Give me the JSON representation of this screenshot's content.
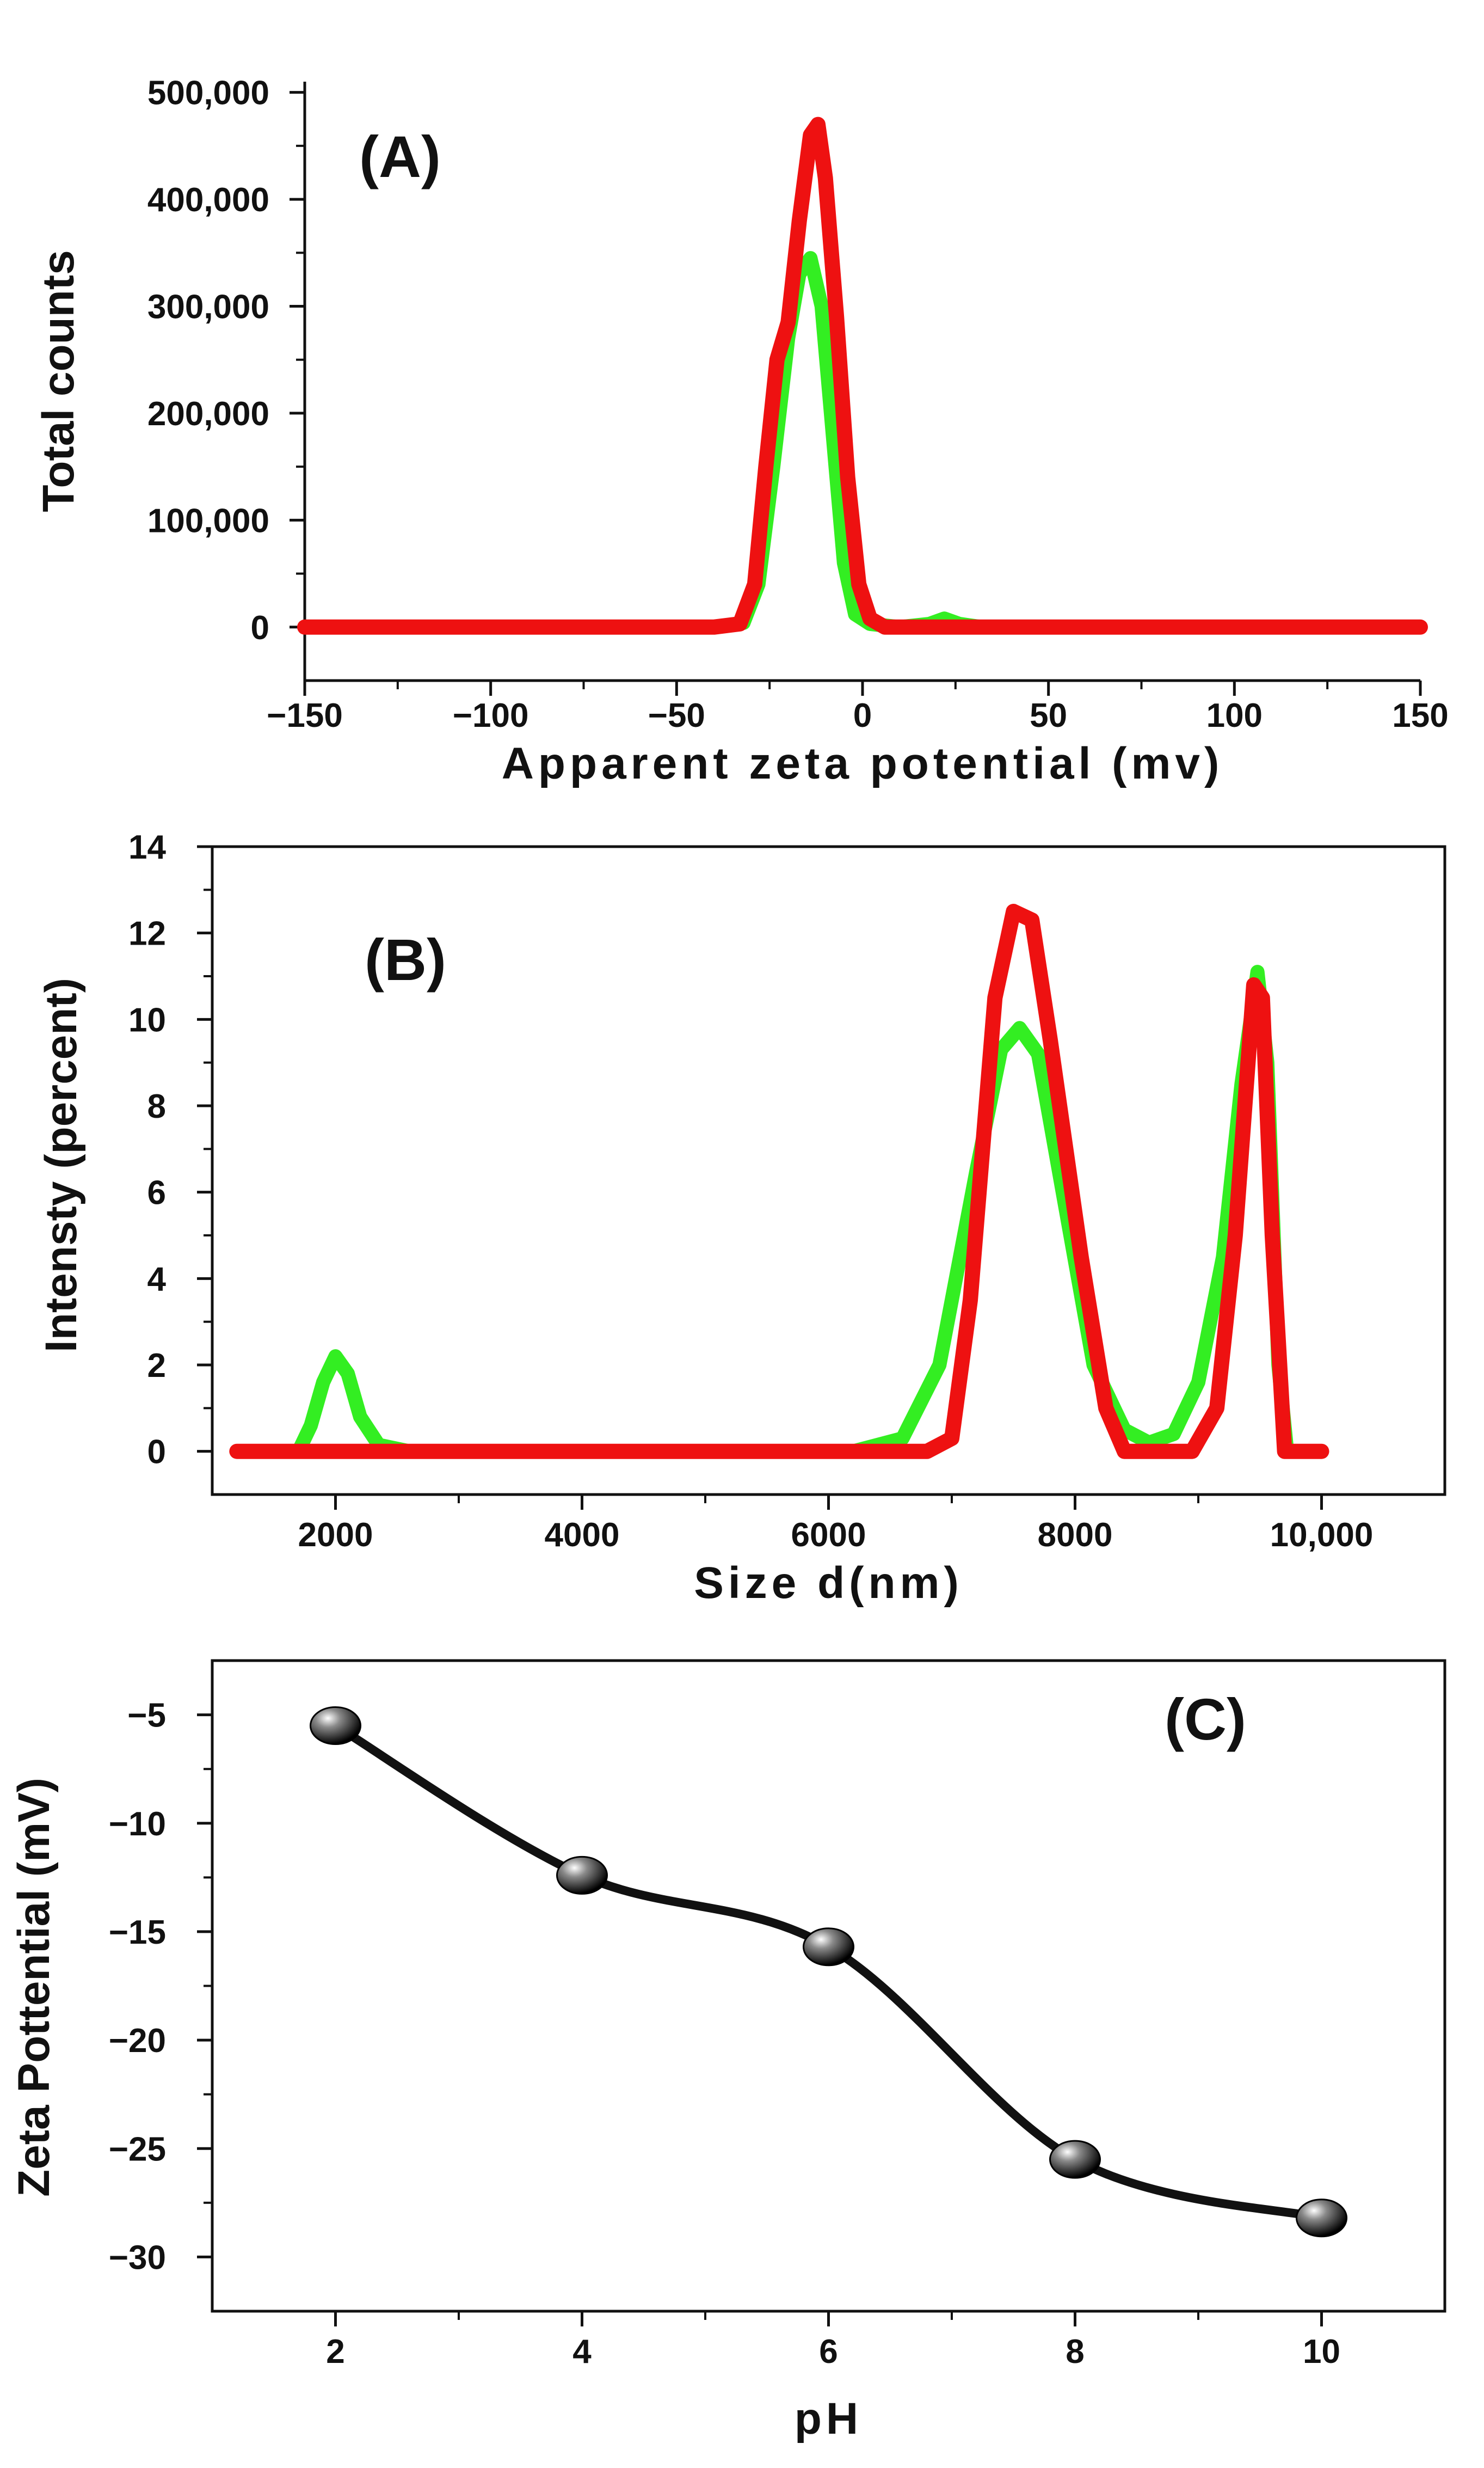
{
  "colors": {
    "green": "#33ee22",
    "red": "#ee1111",
    "black": "#111111"
  },
  "chart_data": [
    {
      "id": "A",
      "type": "line",
      "panel_label": "(A)",
      "xlabel": "Apparent zeta potential (mv)",
      "ylabel": "Total counts",
      "xlim": [
        -150,
        150
      ],
      "ylim": [
        -50000,
        510000
      ],
      "xticks": [
        -150,
        -100,
        -50,
        0,
        50,
        100,
        150
      ],
      "xtick_labels": [
        "−150",
        "−100",
        "−50",
        "0",
        "50",
        "100",
        "150"
      ],
      "yticks": [
        0,
        100000,
        200000,
        300000,
        400000,
        500000
      ],
      "ytick_labels": [
        "0",
        "100,000",
        "200,000",
        "300,000",
        "400,000",
        "500,000"
      ],
      "series": [
        {
          "name": "green",
          "color": "#33ee22",
          "points": [
            [
              -150,
              0
            ],
            [
              -40,
              0
            ],
            [
              -32,
              4000
            ],
            [
              -28,
              40000
            ],
            [
              -24,
              150000
            ],
            [
              -20,
              270000
            ],
            [
              -17,
              330000
            ],
            [
              -14,
              345000
            ],
            [
              -11,
              300000
            ],
            [
              -8,
              180000
            ],
            [
              -5,
              60000
            ],
            [
              -2,
              12000
            ],
            [
              2,
              3000
            ],
            [
              10,
              0
            ],
            [
              18,
              3000
            ],
            [
              22,
              8000
            ],
            [
              26,
              3000
            ],
            [
              32,
              0
            ],
            [
              150,
              0
            ]
          ]
        },
        {
          "name": "red",
          "color": "#ee1111",
          "points": [
            [
              -150,
              0
            ],
            [
              -40,
              0
            ],
            [
              -33,
              3000
            ],
            [
              -29,
              40000
            ],
            [
              -26,
              150000
            ],
            [
              -23,
              250000
            ],
            [
              -20,
              285000
            ],
            [
              -17,
              380000
            ],
            [
              -14,
              460000
            ],
            [
              -12,
              470000
            ],
            [
              -10,
              420000
            ],
            [
              -7,
              290000
            ],
            [
              -4,
              140000
            ],
            [
              -1,
              40000
            ],
            [
              2,
              8000
            ],
            [
              6,
              0
            ],
            [
              150,
              0
            ]
          ]
        }
      ]
    },
    {
      "id": "B",
      "type": "line",
      "panel_label": "(B)",
      "xlabel": "Size d(nm)",
      "ylabel": "Intensty (percent)",
      "xlim": [
        1000,
        11000
      ],
      "ylim": [
        -1,
        14
      ],
      "xticks": [
        2000,
        4000,
        6000,
        8000,
        10000
      ],
      "xtick_labels": [
        "2000",
        "4000",
        "6000",
        "8000",
        "10,000"
      ],
      "yticks": [
        0,
        2,
        4,
        6,
        8,
        10,
        12,
        14
      ],
      "ytick_labels": [
        "0",
        "2",
        "4",
        "6",
        "8",
        "10",
        "12",
        "14"
      ],
      "series": [
        {
          "name": "green",
          "color": "#33ee22",
          "points": [
            [
              1700,
              0
            ],
            [
              1800,
              0.6
            ],
            [
              1900,
              1.6
            ],
            [
              2000,
              2.2
            ],
            [
              2100,
              1.8
            ],
            [
              2200,
              0.8
            ],
            [
              2350,
              0.15
            ],
            [
              2600,
              0
            ],
            [
              6200,
              0
            ],
            [
              6600,
              0.3
            ],
            [
              6900,
              2.0
            ],
            [
              7200,
              6.5
            ],
            [
              7400,
              9.3
            ],
            [
              7550,
              9.8
            ],
            [
              7700,
              9.2
            ],
            [
              7900,
              6.0
            ],
            [
              8150,
              2.0
            ],
            [
              8400,
              0.5
            ],
            [
              8600,
              0.2
            ],
            [
              8800,
              0.4
            ],
            [
              9000,
              1.6
            ],
            [
              9200,
              4.5
            ],
            [
              9350,
              8.5
            ],
            [
              9480,
              11.1
            ],
            [
              9560,
              9.0
            ],
            [
              9650,
              2.0
            ],
            [
              9720,
              0
            ]
          ]
        },
        {
          "name": "red",
          "color": "#ee1111",
          "points": [
            [
              1200,
              0
            ],
            [
              6800,
              0
            ],
            [
              7000,
              0.3
            ],
            [
              7150,
              3.5
            ],
            [
              7350,
              10.5
            ],
            [
              7500,
              12.5
            ],
            [
              7650,
              12.3
            ],
            [
              7800,
              9.5
            ],
            [
              8050,
              4.5
            ],
            [
              8250,
              1.0
            ],
            [
              8400,
              0
            ],
            [
              8950,
              0
            ],
            [
              9150,
              1.0
            ],
            [
              9300,
              5.0
            ],
            [
              9450,
              10.8
            ],
            [
              9520,
              10.5
            ],
            [
              9600,
              5.0
            ],
            [
              9700,
              0
            ],
            [
              10000,
              0
            ]
          ]
        }
      ]
    },
    {
      "id": "C",
      "type": "line",
      "panel_label": "(C)",
      "xlabel": "pH",
      "ylabel": "Zeta Pottential (mV)",
      "xlim": [
        1,
        11
      ],
      "ylim": [
        -32.5,
        -2.5
      ],
      "xticks": [
        2,
        4,
        6,
        8,
        10
      ],
      "xtick_labels": [
        "2",
        "4",
        "6",
        "8",
        "10"
      ],
      "yticks": [
        -5,
        -10,
        -15,
        -20,
        -25,
        -30
      ],
      "ytick_labels": [
        "−5",
        "−10",
        "−15",
        "−20",
        "−25",
        "−30"
      ],
      "series": [
        {
          "name": "zeta",
          "color": "#111111",
          "x": [
            2,
            4,
            6,
            8,
            10
          ],
          "values": [
            -5.5,
            -12.4,
            -15.7,
            -25.5,
            -28.2
          ]
        }
      ]
    }
  ]
}
